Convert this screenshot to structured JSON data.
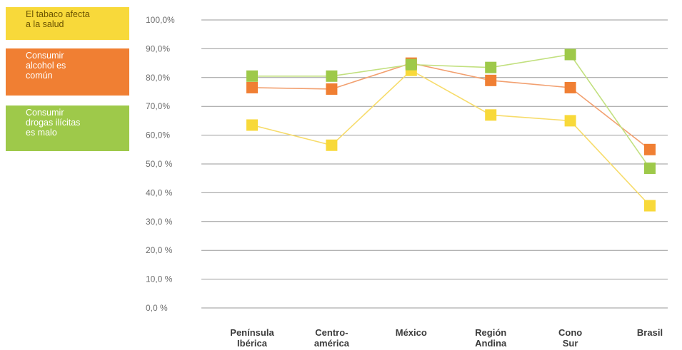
{
  "colors": {
    "gridline": "#9a9a9a",
    "tabaco": "#f8d93a",
    "alcohol": "#f07f33",
    "drogas": "#9ec94a",
    "tabaco_line": "#f7dc6b",
    "alcohol_line": "#f2a070",
    "drogas_line": "#c2e07f"
  },
  "chart_data": {
    "type": "line",
    "title": "",
    "xlabel": "",
    "ylabel": "",
    "ylim": [
      0,
      100
    ],
    "yticks": [
      "100,0%",
      "90,0%",
      "80,0%",
      "70,0%",
      "60,0%",
      "50,0 %",
      "40,0 %",
      "30,0 %",
      "20,0 %",
      "10,0 %",
      "0,0 %"
    ],
    "ytick_values": [
      100,
      90,
      80,
      70,
      60,
      50,
      40,
      30,
      20,
      10,
      0
    ],
    "categories": [
      [
        "Península",
        "Ibérica"
      ],
      [
        "Centro-",
        "américa"
      ],
      [
        "México"
      ],
      [
        "Región",
        "Andina"
      ],
      [
        "Cono",
        "Sur"
      ],
      [
        "Brasil"
      ]
    ],
    "grid": true,
    "legend_position": "left",
    "series": [
      {
        "name": "El tabaco afecta a la salud",
        "legend_lines": [
          "El tabaco afecta",
          "a la salud"
        ],
        "color_key": "tabaco",
        "values": [
          63.5,
          56.5,
          82.5,
          67.0,
          65.0,
          35.5
        ]
      },
      {
        "name": "Consumir alcohol es común",
        "legend_lines": [
          "Consumir",
          "alcohol es",
          "común"
        ],
        "color_key": "alcohol",
        "values": [
          76.5,
          76.0,
          85.0,
          79.0,
          76.5,
          55.0
        ]
      },
      {
        "name": "Consumir drogas ilícitas es malo",
        "legend_lines": [
          "Consumir",
          "drogas ilícitas",
          "es malo"
        ],
        "color_key": "drogas",
        "values": [
          80.5,
          80.5,
          84.5,
          83.5,
          88.0,
          48.5
        ]
      }
    ]
  }
}
